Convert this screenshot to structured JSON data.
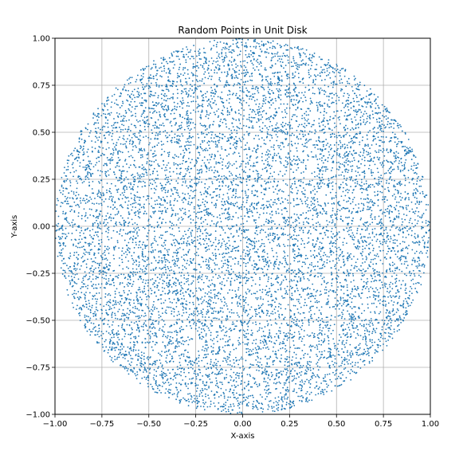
{
  "chart_data": {
    "type": "scatter",
    "title": "Random Points in Unit Disk",
    "xlabel": "X-axis",
    "ylabel": "Y-axis",
    "xlim": [
      -1.0,
      1.0
    ],
    "ylim": [
      -1.0,
      1.0
    ],
    "x_ticks": [
      "−1.00",
      "−0.75",
      "−0.50",
      "−0.25",
      "0.00",
      "0.25",
      "0.50",
      "0.75",
      "1.00"
    ],
    "y_ticks": [
      "−1.00",
      "−0.75",
      "−0.50",
      "−0.25",
      "0.00",
      "0.25",
      "0.50",
      "0.75",
      "1.00"
    ],
    "grid": true,
    "point_color": "#1f77b4",
    "region": "unit disk x^2 + y^2 <= 1",
    "point_count": 10000
  }
}
